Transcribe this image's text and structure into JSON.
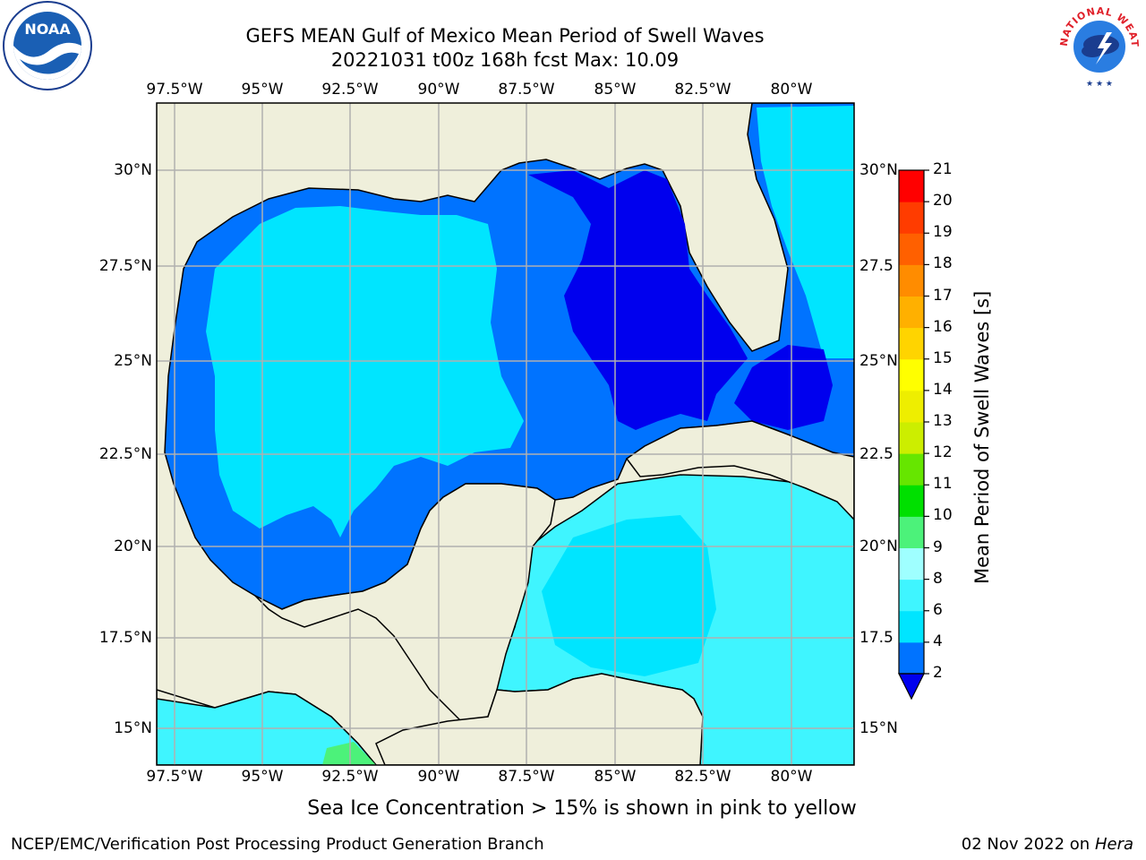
{
  "title": {
    "line1": "GEFS MEAN Gulf of Mexico Mean Period of Swell Waves",
    "line2": "20221031 t00z 168h fcst   Max: 10.09"
  },
  "map": {
    "lon_labels": [
      "97.5°W",
      "95°W",
      "92.5°W",
      "90°W",
      "87.5°W",
      "85°W",
      "82.5°W",
      "80°W"
    ],
    "lat_labels_left": [
      "30°N",
      "27.5°N",
      "25°N",
      "22.5°N",
      "20°N",
      "17.5°N",
      "15°N"
    ],
    "lat_labels_right": [
      "30°N",
      "27.5",
      "25°N",
      "22.5",
      "20°N",
      "17.5",
      "15°N"
    ],
    "land_color": "#efefdb",
    "grid_color": "#b0b0b0"
  },
  "colorbar": {
    "title": "Mean Period of Swell Waves [s]",
    "ticks": [
      "2",
      "4",
      "6",
      "8",
      "9",
      "10",
      "11",
      "12",
      "13",
      "14",
      "15",
      "16",
      "17",
      "18",
      "19",
      "20",
      "21"
    ],
    "bins": [
      {
        "color": "#0073ff"
      },
      {
        "color": "#00e5ff"
      },
      {
        "color": "#3ff5ff"
      },
      {
        "color": "#9fffff"
      },
      {
        "color": "#4cf27a"
      },
      {
        "color": "#00e000"
      },
      {
        "color": "#66e600"
      },
      {
        "color": "#ccee00"
      },
      {
        "color": "#eeee00"
      },
      {
        "color": "#ffff00"
      },
      {
        "color": "#ffd400"
      },
      {
        "color": "#ffb000"
      },
      {
        "color": "#ff8c00"
      },
      {
        "color": "#ff6000"
      },
      {
        "color": "#ff3c00"
      },
      {
        "color": "#ff0000"
      }
    ],
    "under_color": "#0000ee"
  },
  "note": "Sea Ice Concentration > 15% is shown in pink to yellow",
  "footer": {
    "left": "NCEP/EMC/Verification Post Processing Product Generation Branch",
    "right_date": "02 Nov 2022 on",
    "right_host": "Hera"
  },
  "logos": {
    "noaa_text": "NOAA",
    "nws_text": "NATIONAL WEATHER SERVICE"
  }
}
